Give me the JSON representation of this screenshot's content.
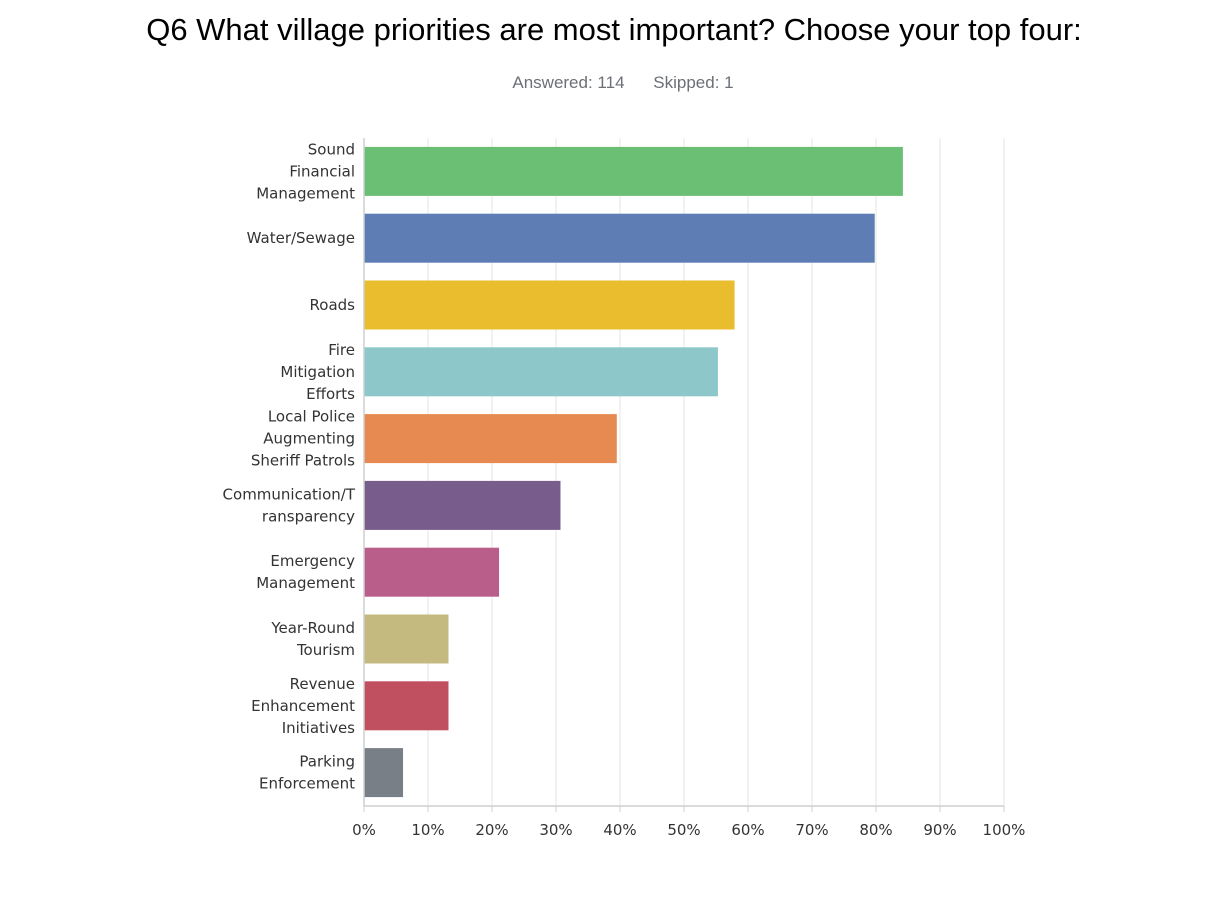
{
  "header": {
    "title": "Q6 What village priorities are most important? Choose your top four:",
    "answered_label": "Answered: 114",
    "skipped_label": "Skipped: 1"
  },
  "chart_data": {
    "type": "bar",
    "orientation": "horizontal",
    "title": "Q6 What village priorities are most important? Choose your top four:",
    "xlabel": "",
    "ylabel": "",
    "xlim": [
      0,
      100
    ],
    "grid": true,
    "legend": "none",
    "x_ticks": [
      "0%",
      "10%",
      "20%",
      "30%",
      "40%",
      "50%",
      "60%",
      "70%",
      "80%",
      "90%",
      "100%"
    ],
    "categories": [
      [
        "Sound",
        "Financial",
        "Management"
      ],
      [
        "Water/Sewage"
      ],
      [
        "Roads"
      ],
      [
        "Fire",
        "Mitigation",
        "Efforts"
      ],
      [
        "Local Police",
        "Augmenting",
        "Sheriff Patrols"
      ],
      [
        "Communication/T",
        "ransparency"
      ],
      [
        "Emergency",
        "Management"
      ],
      [
        "Year-Round",
        "Tourism"
      ],
      [
        "Revenue",
        "Enhancement",
        "Initiatives"
      ],
      [
        "Parking",
        "Enforcement"
      ]
    ],
    "values": [
      84.2,
      79.8,
      57.9,
      55.3,
      39.5,
      30.7,
      21.1,
      13.2,
      13.2,
      6.1
    ],
    "colors": [
      "#6bbf74",
      "#5f7db5",
      "#e9bd2d",
      "#8dc7c9",
      "#e68a52",
      "#775c8c",
      "#b95d8b",
      "#c4b97e",
      "#c05060",
      "#787f86"
    ]
  }
}
